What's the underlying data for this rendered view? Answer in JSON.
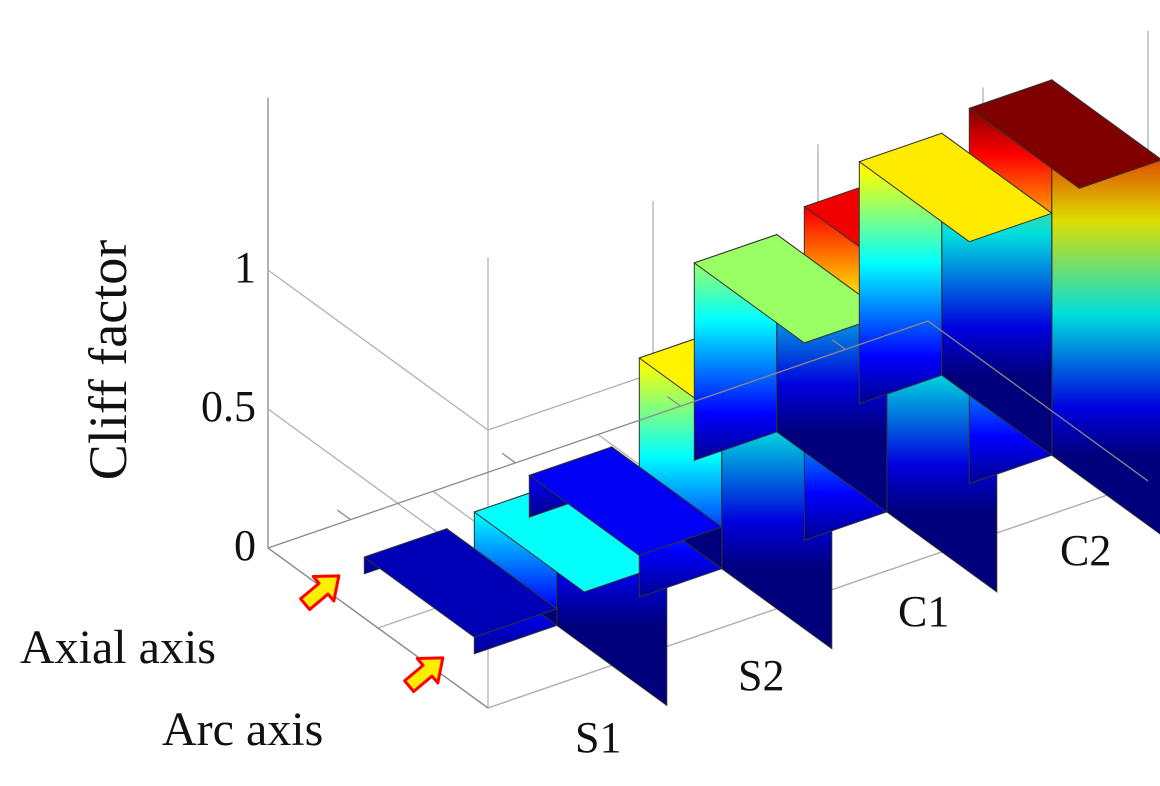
{
  "chart_data": {
    "type": "bar3d",
    "title": "",
    "ylabel": "Cliff factor",
    "zlim": [
      0,
      1
    ],
    "zticks": [
      {
        "value": 0,
        "label": "0"
      },
      {
        "value": 0.5,
        "label": "0.5"
      },
      {
        "value": 1,
        "label": "1"
      }
    ],
    "categories": [
      "S1",
      "S2",
      "C1",
      "C2"
    ],
    "series": [
      {
        "name": "Axial axis",
        "values": [
          0.51,
          0.86,
          1.2,
          1.35
        ]
      },
      {
        "name": "Arc axis",
        "values": [
          0.06,
          0.15,
          0.71,
          0.87
        ]
      }
    ],
    "colormap": [
      "#00008f",
      "#0000ff",
      "#0080ff",
      "#00ffff",
      "#80ff80",
      "#ffff00",
      "#ff8000",
      "#ff0000",
      "#800000"
    ],
    "colormap_max": 1.35,
    "grid": true,
    "annotation_arrow_color": "#ffee00",
    "annotation_arrow_outline": "#ff0000"
  }
}
